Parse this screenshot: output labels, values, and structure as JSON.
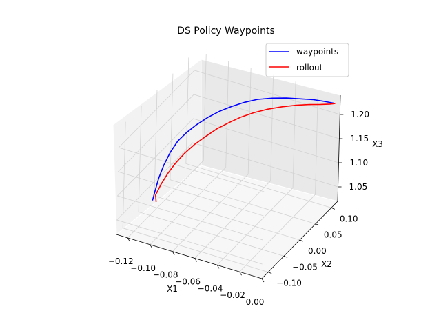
{
  "chart_data": {
    "type": "line",
    "projection": "3d",
    "title": "DS Policy Waypoints",
    "xlabel": "X1",
    "ylabel": "X2",
    "zlabel": "X3",
    "xlim": [
      -0.13,
      0.0
    ],
    "ylim": [
      -0.12,
      0.12
    ],
    "zlim": [
      1.02,
      1.24
    ],
    "xticks": [
      "−0.12",
      "−0.10",
      "−0.08",
      "−0.06",
      "−0.04",
      "−0.02",
      "0.00"
    ],
    "yticks": [
      "−0.10",
      "−0.05",
      "0.00",
      "0.05",
      "0.10"
    ],
    "zticks": [
      "1.05",
      "1.10",
      "1.15",
      "1.20"
    ],
    "grid": true,
    "legend_position": "top-right",
    "colors": {
      "waypoints": "#0000ff",
      "rollout": "#ff0000"
    },
    "series": [
      {
        "name": "waypoints",
        "color": "#0000ff",
        "x": [
          -0.125,
          -0.124,
          -0.123,
          -0.121,
          -0.118,
          -0.114,
          -0.109,
          -0.103,
          -0.096,
          -0.089,
          -0.081,
          -0.072,
          -0.063,
          -0.052,
          -0.041,
          -0.03,
          -0.02,
          -0.011,
          -0.004
        ],
        "y": [
          -0.024,
          -0.02,
          -0.013,
          -0.005,
          0.004,
          0.013,
          0.022,
          0.032,
          0.043,
          0.054,
          0.064,
          0.073,
          0.081,
          0.089,
          0.095,
          0.101,
          0.106,
          0.11,
          0.115
        ],
        "z": [
          1.03,
          1.048,
          1.07,
          1.093,
          1.116,
          1.136,
          1.151,
          1.165,
          1.178,
          1.188,
          1.197,
          1.206,
          1.213,
          1.218,
          1.222,
          1.224,
          1.226,
          1.226,
          1.224
        ]
      },
      {
        "name": "rollout",
        "color": "#ff0000",
        "x": [
          -0.122,
          -0.124,
          -0.122,
          -0.119,
          -0.115,
          -0.11,
          -0.104,
          -0.097,
          -0.09,
          -0.082,
          -0.074,
          -0.065,
          -0.055,
          -0.044,
          -0.033,
          -0.023,
          -0.014,
          -0.007,
          -0.003
        ],
        "y": [
          -0.023,
          -0.018,
          -0.009,
          0.001,
          0.011,
          0.021,
          0.031,
          0.041,
          0.051,
          0.061,
          0.07,
          0.078,
          0.086,
          0.093,
          0.099,
          0.104,
          0.108,
          0.112,
          0.115
        ],
        "z": [
          1.028,
          1.038,
          1.055,
          1.073,
          1.091,
          1.108,
          1.124,
          1.139,
          1.153,
          1.165,
          1.176,
          1.186,
          1.195,
          1.203,
          1.21,
          1.215,
          1.219,
          1.222,
          1.224
        ]
      }
    ]
  }
}
